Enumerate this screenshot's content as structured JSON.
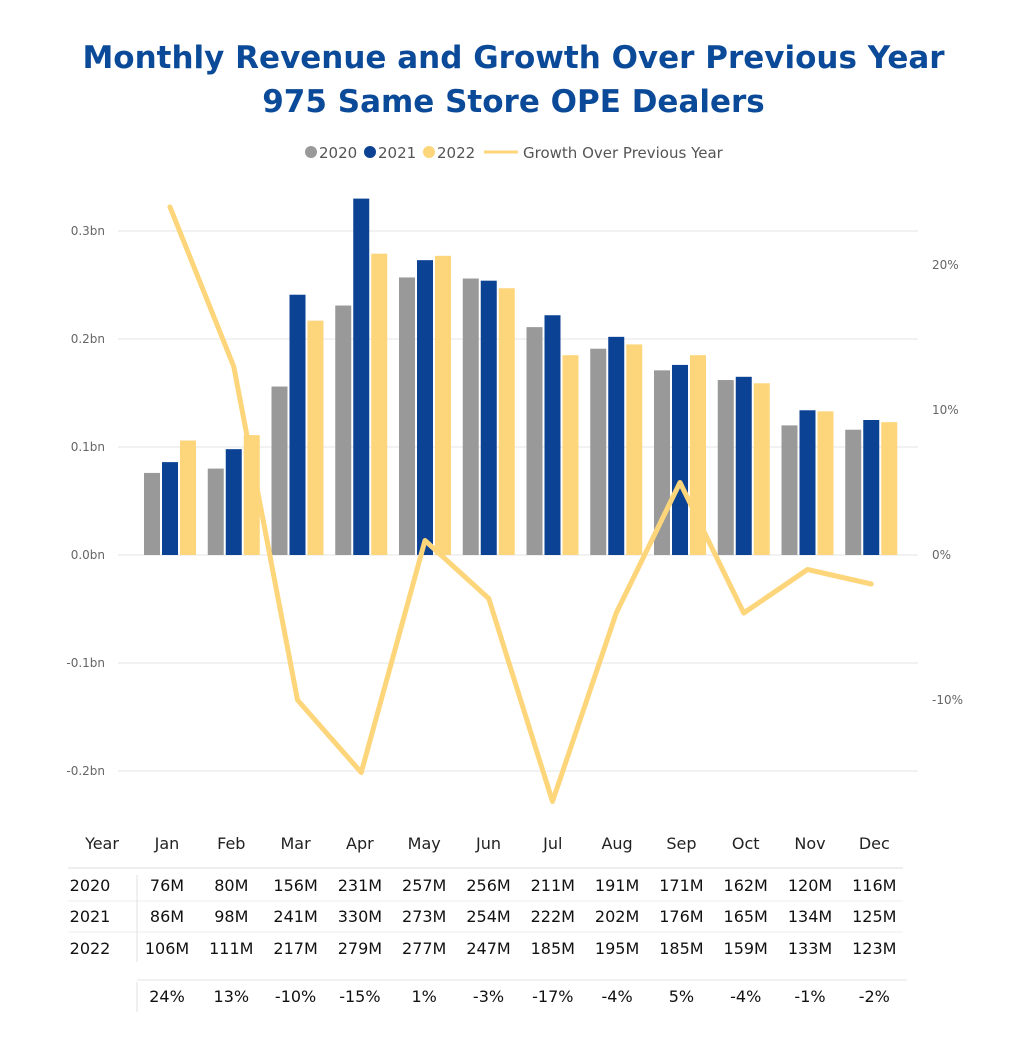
{
  "title_line1": "Monthly Revenue and Growth Over Previous Year",
  "title_line2": "975 Same Store OPE Dealers",
  "colors": {
    "2020": "#999999",
    "2021": "#0B4294",
    "2022": "#FDD57A",
    "growth": "#FDD57A",
    "title": "#0B4A98"
  },
  "chart_data": {
    "type": "bar",
    "legend_placement": "top-center",
    "categories": [
      "Jan",
      "Feb",
      "Mar",
      "Apr",
      "May",
      "Jun",
      "Jul",
      "Aug",
      "Sep",
      "Oct",
      "Nov",
      "Dec"
    ],
    "series": [
      {
        "name": "2020",
        "values": [
          0.076,
          0.08,
          0.156,
          0.231,
          0.257,
          0.256,
          0.211,
          0.191,
          0.171,
          0.162,
          0.12,
          0.116
        ]
      },
      {
        "name": "2021",
        "values": [
          0.086,
          0.098,
          0.241,
          0.33,
          0.273,
          0.254,
          0.222,
          0.202,
          0.176,
          0.165,
          0.134,
          0.125
        ]
      },
      {
        "name": "2022",
        "values": [
          0.106,
          0.111,
          0.217,
          0.279,
          0.277,
          0.247,
          0.185,
          0.195,
          0.185,
          0.159,
          0.133,
          0.123
        ]
      }
    ],
    "line_series": {
      "name": "Growth Over Previous Year",
      "type": "line",
      "axis": "secondary",
      "values": [
        24,
        13,
        -10,
        -15,
        1,
        -3,
        -17,
        -4,
        5,
        -4,
        -1,
        -2
      ]
    },
    "y_left": {
      "ticks": [
        "0.3bn",
        "0.2bn",
        "0.1bn",
        "0.0bn",
        "-0.1bn",
        "-0.2bn"
      ],
      "values": [
        0.3,
        0.2,
        0.1,
        0.0,
        -0.1,
        -0.2
      ]
    },
    "y_right": {
      "ticks": [
        "20%",
        "10%",
        "0%",
        "-10%"
      ],
      "values": [
        20,
        10,
        0,
        -10
      ]
    },
    "grid": true
  },
  "table": {
    "year_header": "Year",
    "months": [
      "Jan",
      "Feb",
      "Mar",
      "Apr",
      "May",
      "Jun",
      "Jul",
      "Aug",
      "Sep",
      "Oct",
      "Nov",
      "Dec"
    ],
    "rows": [
      {
        "year": "2020",
        "cells": [
          "76M",
          "80M",
          "156M",
          "231M",
          "257M",
          "256M",
          "211M",
          "191M",
          "171M",
          "162M",
          "120M",
          "116M"
        ]
      },
      {
        "year": "2021",
        "cells": [
          "86M",
          "98M",
          "241M",
          "330M",
          "273M",
          "254M",
          "222M",
          "202M",
          "176M",
          "165M",
          "134M",
          "125M"
        ]
      },
      {
        "year": "2022",
        "cells": [
          "106M",
          "111M",
          "217M",
          "279M",
          "277M",
          "247M",
          "185M",
          "195M",
          "185M",
          "159M",
          "133M",
          "123M"
        ]
      }
    ],
    "growth": [
      "24%",
      "13%",
      "-10%",
      "-15%",
      "1%",
      "-3%",
      "-17%",
      "-4%",
      "5%",
      "-4%",
      "-1%",
      "-2%"
    ]
  }
}
